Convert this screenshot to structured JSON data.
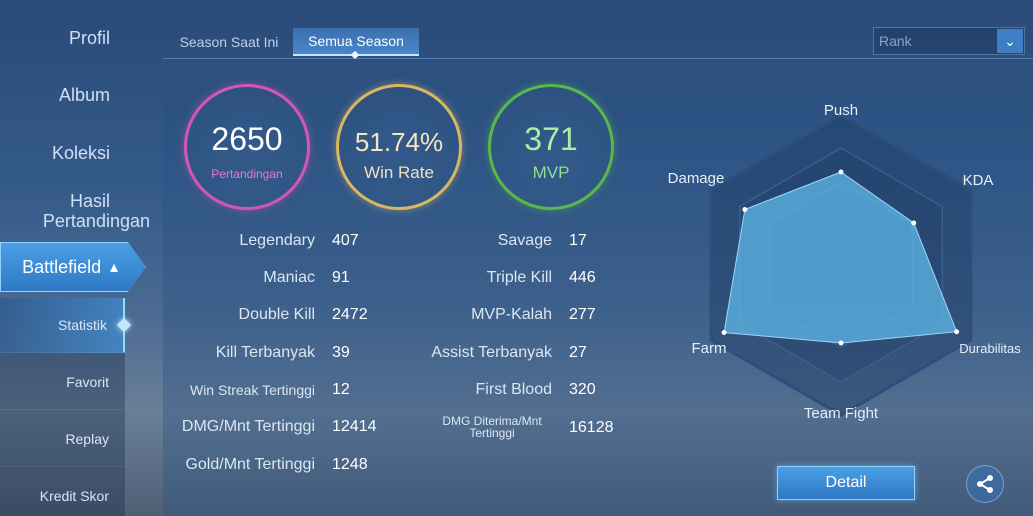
{
  "sidebar": {
    "items": [
      {
        "label": "Profil"
      },
      {
        "label": "Album"
      },
      {
        "label": "Koleksi"
      },
      {
        "label_line1": "Hasil",
        "label_line2": "Pertandingan"
      },
      {
        "label": "Battlefield",
        "expanded": true
      }
    ],
    "sub_items": [
      {
        "label": "Statistik",
        "active": true
      },
      {
        "label": "Favorit"
      },
      {
        "label": "Replay"
      },
      {
        "label": "Kredit Skor"
      }
    ]
  },
  "tabs": [
    {
      "label": "Season Saat Ini",
      "active": false
    },
    {
      "label": "Semua Season",
      "active": true
    }
  ],
  "filter": {
    "selected": "Rank"
  },
  "summary": {
    "matches": {
      "value": "2650",
      "label": "Pertandingan",
      "color": "#d455b8"
    },
    "win_rate": {
      "value": "51.74%",
      "label": "Win Rate",
      "color": "#d8b764"
    },
    "mvp": {
      "value": "371",
      "label": "MVP",
      "color": "#58b84c"
    }
  },
  "stats_left": [
    {
      "label": "Legendary",
      "value": "407"
    },
    {
      "label": "Maniac",
      "value": "91"
    },
    {
      "label": "Double Kill",
      "value": "2472"
    },
    {
      "label": "Kill Terbanyak",
      "value": "39"
    },
    {
      "label": "Win Streak Tertinggi",
      "value": "12"
    },
    {
      "label": "DMG/Mnt Tertinggi",
      "value": "12414"
    },
    {
      "label": "Gold/Mnt Tertinggi",
      "value": "1248"
    }
  ],
  "stats_right": [
    {
      "label": "Savage",
      "value": "17"
    },
    {
      "label": "Triple Kill",
      "value": "446"
    },
    {
      "label": "MVP-Kalah",
      "value": "277"
    },
    {
      "label": "Assist Terbanyak",
      "value": "27"
    },
    {
      "label": "First Blood",
      "value": "320"
    },
    {
      "label_line1": "DMG Diterima/Mnt",
      "label_line2": "Tertinggi",
      "value": "16128"
    }
  ],
  "radar": {
    "axes": [
      "Push",
      "KDA",
      "Durabilitas",
      "Team Fight",
      "Farm",
      "Damage"
    ],
    "values": [
      0.62,
      0.56,
      0.89,
      0.52,
      0.9,
      0.74
    ],
    "fill_color": "#5fb8e8"
  },
  "actions": {
    "detail_label": "Detail",
    "share_icon": "share-icon"
  }
}
